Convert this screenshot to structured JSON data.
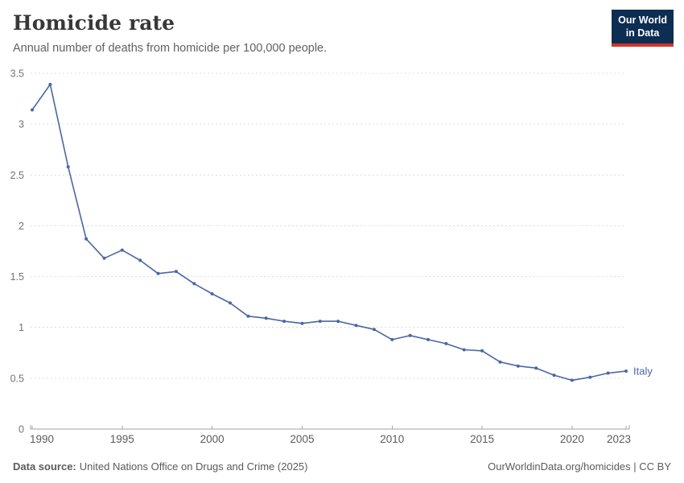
{
  "header": {
    "title": "Homicide rate",
    "subtitle": "Annual number of deaths from homicide per 100,000 people.",
    "logo": {
      "line1": "Our World",
      "line2": "in Data",
      "bg_color": "#0d2d52",
      "accent_color": "#d0342a"
    }
  },
  "chart_data": {
    "type": "line",
    "title": "Homicide rate",
    "xlabel": "",
    "ylabel": "",
    "xlim": [
      1990,
      2023
    ],
    "ylim": [
      0,
      3.5
    ],
    "x_ticks": [
      1990,
      1995,
      2000,
      2005,
      2010,
      2015,
      2020,
      2023
    ],
    "y_ticks": [
      0,
      0.5,
      1,
      1.5,
      2,
      2.5,
      3,
      3.5
    ],
    "grid": "horizontal-dashed",
    "legend_position": "end-of-line-label",
    "axis_color": "#a3a3a3",
    "grid_color": "#dcdcdc",
    "series": [
      {
        "name": "Italy",
        "color": "#4a67a3",
        "x": [
          1990,
          1991,
          1992,
          1993,
          1994,
          1995,
          1996,
          1997,
          1998,
          1999,
          2000,
          2001,
          2002,
          2003,
          2004,
          2005,
          2006,
          2007,
          2008,
          2009,
          2010,
          2011,
          2012,
          2013,
          2014,
          2015,
          2016,
          2017,
          2018,
          2019,
          2020,
          2021,
          2022,
          2023
        ],
        "values": [
          3.14,
          3.39,
          2.58,
          1.87,
          1.68,
          1.76,
          1.66,
          1.53,
          1.55,
          1.43,
          1.33,
          1.24,
          1.11,
          1.09,
          1.06,
          1.04,
          1.06,
          1.06,
          1.02,
          0.98,
          0.88,
          0.92,
          0.88,
          0.84,
          0.78,
          0.77,
          0.66,
          0.62,
          0.6,
          0.53,
          0.48,
          0.51,
          0.55,
          0.57
        ]
      }
    ]
  },
  "footer": {
    "source_label": "Data source:",
    "source_text": "United Nations Office on Drugs and Crime (2025)",
    "credit": "OurWorldinData.org/homicides | CC BY"
  }
}
